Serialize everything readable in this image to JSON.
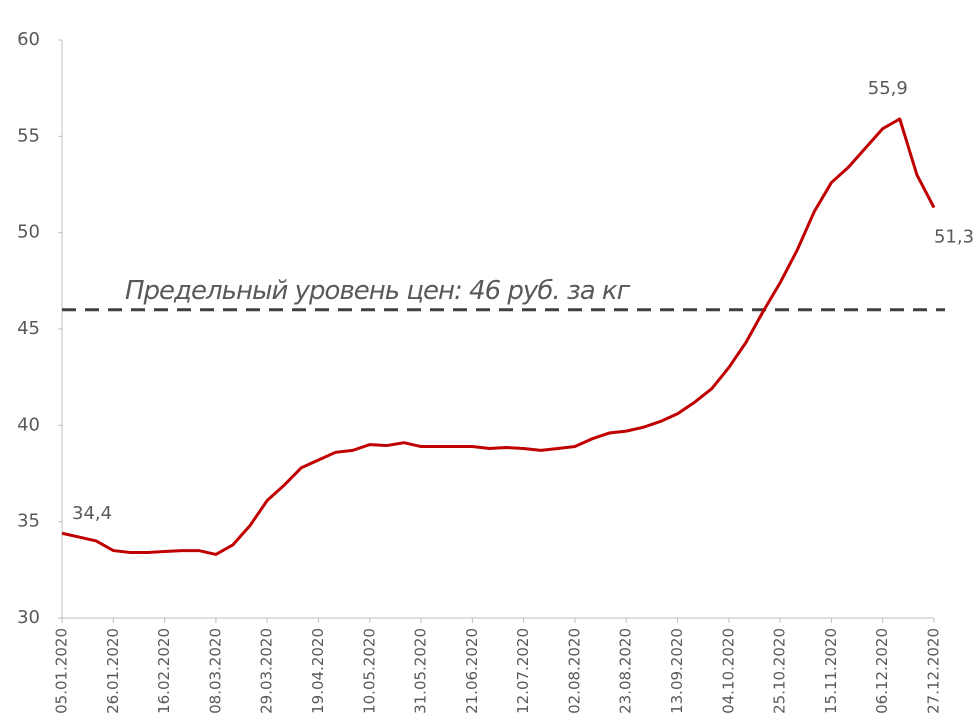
{
  "chart_data": {
    "type": "line",
    "categories": [
      "05.01.2020",
      null,
      null,
      "26.01.2020",
      null,
      null,
      "16.02.2020",
      null,
      null,
      "08.03.2020",
      null,
      null,
      "29.03.2020",
      null,
      null,
      "19.04.2020",
      null,
      null,
      "10.05.2020",
      null,
      null,
      "31.05.2020",
      null,
      null,
      "21.06.2020",
      null,
      null,
      "12.07.2020",
      null,
      null,
      "02.08.2020",
      null,
      null,
      "23.08.2020",
      null,
      null,
      "13.09.2020",
      null,
      null,
      "04.10.2020",
      null,
      null,
      "25.10.2020",
      null,
      null,
      "15.11.2020",
      null,
      null,
      "06.12.2020",
      null,
      null,
      "27.12.2020"
    ],
    "series": [
      {
        "color": "#c00000",
        "values": [
          34.4,
          34.2,
          34.0,
          33.5,
          33.4,
          33.4,
          33.45,
          33.5,
          33.5,
          33.3,
          33.8,
          34.8,
          36.1,
          36.9,
          37.8,
          38.2,
          38.6,
          38.7,
          39.0,
          38.95,
          39.1,
          38.9,
          38.9,
          38.9,
          38.9,
          38.8,
          38.85,
          38.8,
          38.7,
          38.8,
          38.9,
          39.3,
          39.6,
          39.7,
          39.9,
          40.2,
          40.6,
          41.2,
          41.9,
          43.0,
          44.3,
          45.9,
          47.4,
          49.1,
          51.1,
          52.6,
          53.4,
          54.4,
          55.4,
          55.9,
          53.0,
          51.3
        ],
        "value_labels": [
          "34,4",
          null,
          null,
          null,
          null,
          null,
          null,
          null,
          null,
          null,
          null,
          null,
          null,
          null,
          null,
          null,
          null,
          null,
          null,
          null,
          null,
          null,
          null,
          null,
          null,
          null,
          null,
          null,
          null,
          null,
          null,
          null,
          null,
          null,
          null,
          null,
          null,
          null,
          null,
          null,
          null,
          null,
          null,
          null,
          null,
          null,
          null,
          null,
          null,
          "55,9",
          null,
          "51,3"
        ]
      }
    ],
    "threshold": {
      "value": 46,
      "label": "Предельный уровень цен: 46 руб. за кг",
      "color": "#404040"
    },
    "ylim": [
      30,
      60
    ],
    "yticks": [
      30,
      35,
      40,
      45,
      50,
      55,
      60
    ],
    "grid": false
  }
}
